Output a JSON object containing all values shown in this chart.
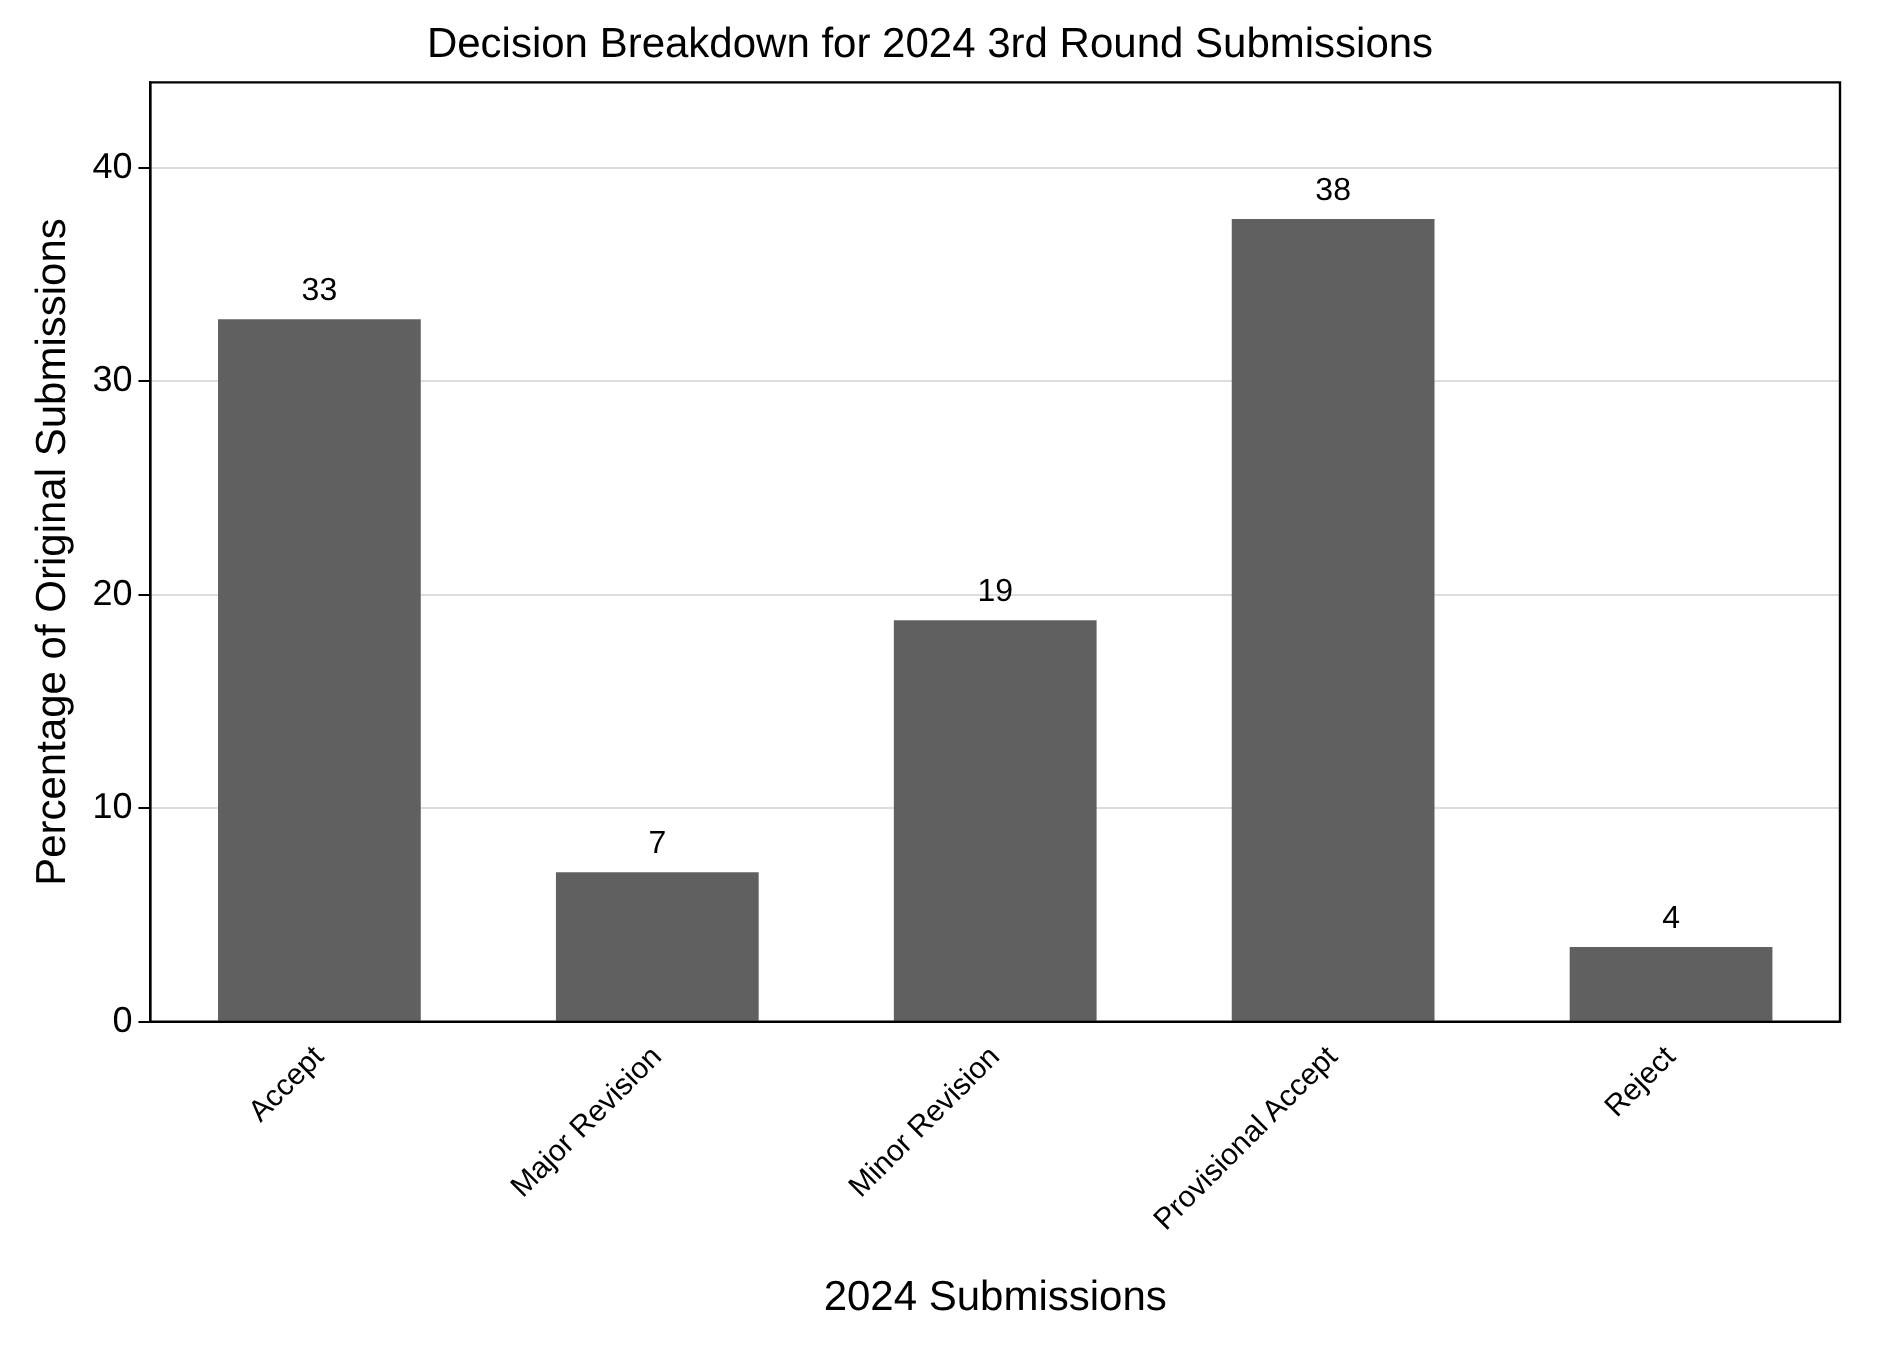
{
  "chart_data": {
    "type": "bar",
    "title": "Decision Breakdown for 2024 3rd Round Submissions",
    "xlabel": "2024 Submissions",
    "ylabel": "Percentage of Original Submissions",
    "categories": [
      "Accept",
      "Major Revision",
      "Minor Revision",
      "Provisional Accept",
      "Reject"
    ],
    "values": [
      32.9,
      7,
      18.8,
      37.6,
      3.5
    ],
    "value_labels": [
      "33",
      "7",
      "19",
      "38",
      "4"
    ],
    "color": "#606060",
    "ylim": [
      0,
      44
    ],
    "yticks": [
      0,
      10,
      20,
      30,
      40
    ],
    "grid": "y",
    "legend": false
  }
}
